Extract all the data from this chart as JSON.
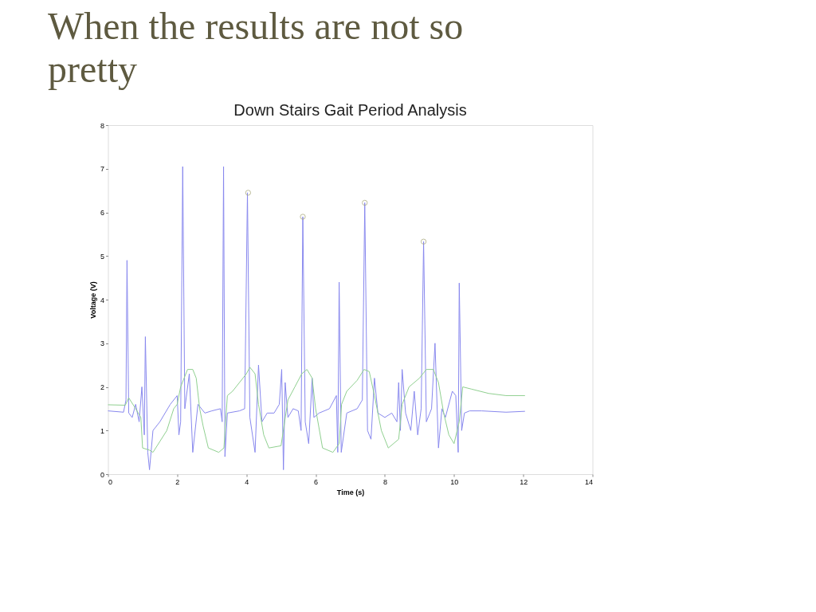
{
  "chart_data": {
    "type": "line",
    "title": "When the results are not so pretty",
    "subtitle": "Down Stairs Gait Period Analysis",
    "xlabel": "Time (s)",
    "ylabel": "Voltage (V)",
    "xlim": [
      0,
      14
    ],
    "xticks": [
      0,
      2,
      4,
      6,
      8,
      10,
      12,
      14
    ],
    "ylim": [
      0,
      8
    ],
    "yticks": [
      0,
      1,
      2,
      3,
      4,
      5,
      6,
      7,
      8
    ],
    "grid": false,
    "line_style": "solid",
    "series": [
      {
        "color": "#8888ee",
        "x": [
          0,
          0.45,
          0.52,
          0.55,
          0.6,
          0.7,
          0.8,
          0.9,
          0.98,
          1.05,
          1.08,
          1.15,
          1.2,
          1.3,
          1.5,
          1.8,
          2.0,
          2.05,
          2.1,
          2.16,
          2.22,
          2.35,
          2.45,
          2.6,
          2.8,
          3.0,
          3.25,
          3.3,
          3.34,
          3.38,
          3.45,
          3.8,
          3.95,
          4.03,
          4.1,
          4.25,
          4.35,
          4.45,
          4.6,
          4.8,
          4.95,
          5.02,
          5.07,
          5.12,
          5.2,
          5.35,
          5.5,
          5.58,
          5.63,
          5.7,
          5.8,
          5.9,
          5.95,
          6.1,
          6.4,
          6.6,
          6.64,
          6.68,
          6.74,
          6.9,
          7.2,
          7.35,
          7.42,
          7.5,
          7.6,
          7.7,
          7.8,
          8.0,
          8.2,
          8.35,
          8.4,
          8.45,
          8.5,
          8.6,
          8.75,
          8.85,
          8.95,
          9.05,
          9.12,
          9.2,
          9.35,
          9.45,
          9.55,
          9.65,
          9.75,
          9.95,
          10.05,
          10.12,
          10.15,
          10.22,
          10.3,
          10.45,
          10.8,
          11.5,
          12.05
        ],
        "values": [
          1.45,
          1.42,
          1.7,
          4.9,
          1.4,
          1.3,
          1.6,
          1.2,
          2.0,
          0.9,
          3.15,
          0.5,
          0.1,
          1.0,
          1.2,
          1.6,
          1.8,
          0.9,
          1.2,
          7.05,
          1.5,
          2.3,
          0.5,
          1.6,
          1.4,
          1.45,
          1.5,
          1.2,
          7.05,
          0.4,
          1.4,
          1.45,
          1.5,
          6.45,
          1.3,
          0.5,
          2.5,
          1.2,
          1.4,
          1.4,
          1.6,
          2.4,
          0.1,
          2.1,
          1.3,
          1.5,
          1.45,
          1.0,
          5.9,
          1.2,
          0.7,
          2.2,
          1.3,
          1.4,
          1.5,
          1.8,
          0.5,
          4.4,
          0.5,
          1.4,
          1.5,
          1.7,
          6.22,
          1.0,
          0.8,
          2.2,
          1.4,
          1.3,
          1.4,
          1.2,
          2.1,
          1.0,
          2.4,
          1.4,
          1.0,
          1.9,
          0.9,
          1.5,
          5.33,
          1.2,
          1.5,
          3.0,
          0.6,
          1.5,
          1.3,
          1.9,
          1.8,
          0.5,
          4.38,
          1.0,
          1.4,
          1.45,
          1.45,
          1.42,
          1.44
        ]
      },
      {
        "color": "#90d090",
        "x": [
          0,
          0.5,
          0.6,
          0.8,
          0.95,
          1.0,
          1.2,
          1.3,
          1.5,
          1.7,
          1.9,
          2.0,
          2.1,
          2.3,
          2.45,
          2.55,
          2.65,
          2.75,
          2.9,
          3.2,
          3.35,
          3.45,
          3.6,
          3.8,
          4.0,
          4.1,
          4.25,
          4.35,
          4.5,
          4.65,
          5.0,
          5.2,
          5.4,
          5.6,
          5.75,
          5.9,
          6.0,
          6.2,
          6.5,
          6.68,
          6.75,
          6.9,
          7.2,
          7.4,
          7.55,
          7.7,
          7.9,
          8.1,
          8.4,
          8.5,
          8.7,
          9.0,
          9.2,
          9.4,
          9.55,
          9.7,
          9.85,
          10.0,
          10.15,
          10.25,
          10.5,
          11.0,
          11.5,
          12.05
        ],
        "values": [
          1.59,
          1.58,
          1.75,
          1.5,
          1.3,
          0.6,
          0.55,
          0.5,
          0.75,
          1.0,
          1.5,
          1.6,
          2.0,
          2.4,
          2.4,
          2.2,
          1.5,
          1.1,
          0.6,
          0.5,
          0.6,
          1.8,
          1.9,
          2.1,
          2.3,
          2.45,
          2.3,
          1.6,
          0.9,
          0.6,
          0.65,
          1.7,
          2.0,
          2.3,
          2.4,
          2.2,
          1.5,
          0.6,
          0.5,
          0.7,
          1.6,
          1.9,
          2.15,
          2.4,
          2.35,
          1.8,
          1.0,
          0.6,
          0.8,
          1.6,
          2.0,
          2.2,
          2.4,
          2.4,
          2.1,
          1.4,
          0.9,
          0.7,
          1.2,
          2.0,
          1.95,
          1.85,
          1.8,
          1.8
        ]
      },
      {
        "type": "scatter",
        "marker": "circle",
        "color": "#a0a070",
        "x": [
          4.05,
          5.63,
          7.42,
          9.12
        ],
        "values": [
          6.45,
          5.9,
          6.22,
          5.33
        ]
      }
    ]
  }
}
